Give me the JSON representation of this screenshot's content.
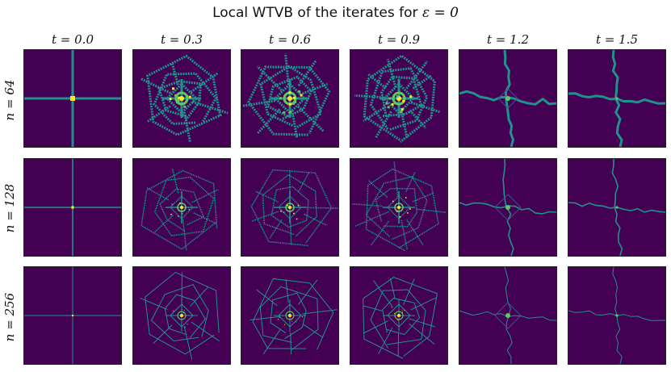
{
  "figure": {
    "title_prefix": "Local WTVB of the iterates for ",
    "title_symbol": "ε = 0",
    "columns": [
      {
        "label": "t = 0.0",
        "time": 0.0
      },
      {
        "label": "t = 0.3",
        "time": 0.3
      },
      {
        "label": "t = 0.6",
        "time": 0.6
      },
      {
        "label": "t = 0.9",
        "time": 0.9
      },
      {
        "label": "t = 1.2",
        "time": 1.2
      },
      {
        "label": "t = 1.5",
        "time": 1.5
      }
    ],
    "rows": [
      {
        "label": "n = 64",
        "n": 64
      },
      {
        "label": "n = 128",
        "n": 128
      },
      {
        "label": "n = 256",
        "n": 256
      }
    ],
    "colormap": {
      "background": "#440154",
      "low": "#3b528b",
      "mid": "#21918c",
      "high": "#5ec962",
      "peak": "#fde725"
    }
  }
}
